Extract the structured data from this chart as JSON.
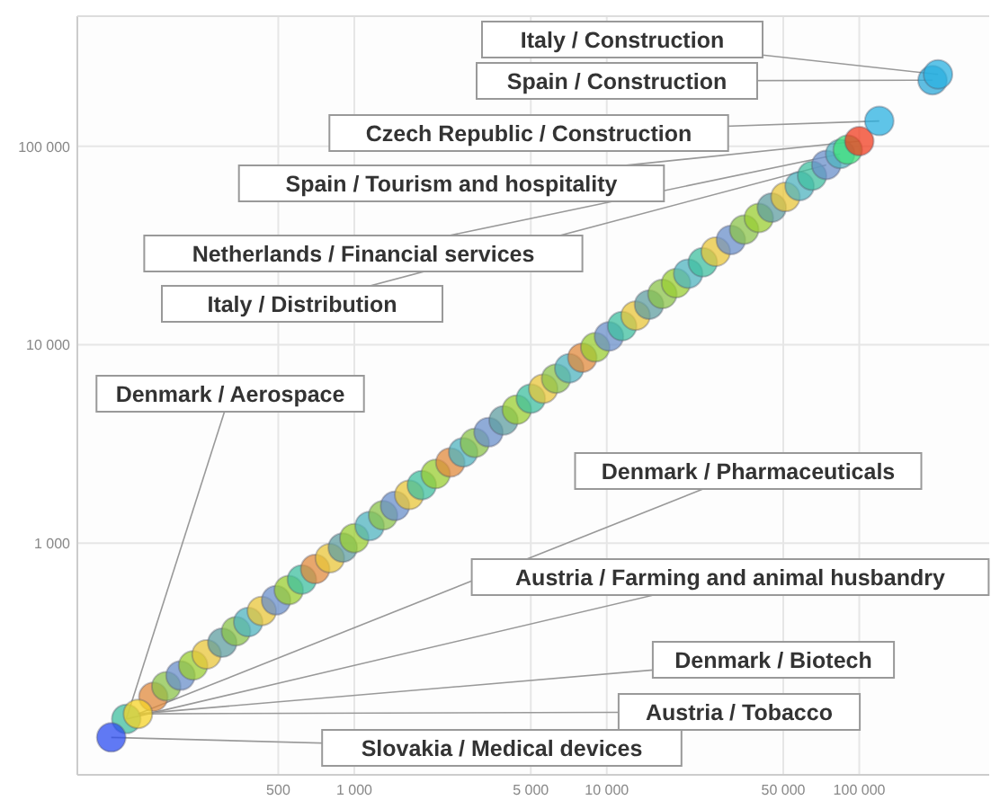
{
  "chart_data": {
    "type": "scatter",
    "log": "xy",
    "grid": true,
    "marker": "circle",
    "xlim": [
      80,
      327000
    ],
    "ylim": [
      68,
      452000
    ],
    "xticks": [
      {
        "value": 500,
        "label": "500"
      },
      {
        "value": 1000,
        "label": "1 000"
      },
      {
        "value": 5000,
        "label": "5 000"
      },
      {
        "value": 10000,
        "label": "10 000"
      },
      {
        "value": 50000,
        "label": "50 000"
      },
      {
        "value": 100000,
        "label": "100 000"
      }
    ],
    "yticks": [
      {
        "value": 1000,
        "label": "1 000"
      },
      {
        "value": 10000,
        "label": "10 000"
      },
      {
        "value": 100000,
        "label": "100 000"
      }
    ],
    "series": [
      {
        "x": [
          125,
          160,
          180,
          205,
          230,
          260,
          300,
          340,
          380,
          430,
          490,
          550,
          620,
          700,
          800,
          900,
          1000,
          1150,
          1300,
          1450,
          1650,
          1850,
          2100,
          2400,
          2700,
          3000,
          3400,
          3900,
          4400,
          5000,
          5600,
          6300,
          7100,
          8000,
          9000,
          10200,
          11500,
          13000,
          14700,
          16600,
          18800,
          21000,
          24000,
          27000,
          31000,
          35000,
          40000,
          45000,
          51000,
          58000,
          65000,
          74000,
          84000,
          90000,
          100000,
          120000,
          195000,
          205000,
          139,
          109
        ],
        "values": [
          130,
          168,
          190,
          215,
          242,
          275,
          315,
          360,
          400,
          455,
          515,
          580,
          655,
          740,
          840,
          950,
          1060,
          1220,
          1380,
          1540,
          1750,
          1960,
          2230,
          2550,
          2870,
          3200,
          3620,
          4150,
          4700,
          5350,
          6000,
          6750,
          7600,
          8600,
          9700,
          11000,
          12400,
          14000,
          15900,
          18000,
          20400,
          22800,
          26000,
          29400,
          33700,
          38000,
          43500,
          49000,
          55500,
          63000,
          71000,
          80500,
          91500,
          96000,
          106000,
          134000,
          215000,
          230000,
          138,
          105
        ],
        "colors": [
          "#3fbf9f",
          "#e08a3c",
          "#8bc34a",
          "#6a8fc9",
          "#9acd32",
          "#e8c53a",
          "#5f9ea0",
          "#8bc34a",
          "#4fb3bf",
          "#e8c53a",
          "#6a8fc9",
          "#9acd32",
          "#3fbf9f",
          "#e08a3c",
          "#e8c53a",
          "#5f9ea0",
          "#9acd32",
          "#4fb3bf",
          "#8bc34a",
          "#6a8fc9",
          "#e8c53a",
          "#3fbf9f",
          "#9acd32",
          "#e08a3c",
          "#4fb3bf",
          "#8bc34a",
          "#6a8fc9",
          "#5f9ea0",
          "#9acd32",
          "#3fbf9f",
          "#e8c53a",
          "#8bc34a",
          "#4fb3bf",
          "#e08a3c",
          "#9acd32",
          "#6a8fc9",
          "#3fbf9f",
          "#e8c53a",
          "#5f9ea0",
          "#8bc34a",
          "#9acd32",
          "#4fb3bf",
          "#3fbf9f",
          "#e8c53a",
          "#6a8fc9",
          "#8bc34a",
          "#9acd32",
          "#5f9ea0",
          "#e8c53a",
          "#4fb3bf",
          "#3fbf9f",
          "#6a8fc9",
          "#4fb3bf",
          "#3ee27a",
          "#f03c1f",
          "#29b0e0",
          "#29a8d8",
          "#29b0e0",
          "#f5d327",
          "#2b4cf0"
        ]
      }
    ],
    "annotations": [
      {
        "text": "Italy / Construction",
        "x": 205000,
        "y": 230000
      },
      {
        "text": "Spain / Construction",
        "x": 195000,
        "y": 215000
      },
      {
        "text": "Czech Republic / Construction",
        "x": 120000,
        "y": 134000
      },
      {
        "text": "Spain / Tourism and hospitality",
        "x": 100000,
        "y": 106000
      },
      {
        "text": "Netherlands / Financial services",
        "x": 84000,
        "y": 91500
      },
      {
        "text": "Italy / Distribution",
        "x": 74000,
        "y": 80500
      },
      {
        "text": "Denmark / Aerospace",
        "x": 125,
        "y": 130
      },
      {
        "text": "Denmark / Pharmaceuticals",
        "x": 139,
        "y": 138
      },
      {
        "text": "Austria / Farming and animal husbandry",
        "x": 125,
        "y": 130
      },
      {
        "text": "Denmark / Biotech",
        "x": 139,
        "y": 138
      },
      {
        "text": "Austria / Tobacco",
        "x": 139,
        "y": 138
      },
      {
        "text": "Slovakia / Medical devices",
        "x": 109,
        "y": 105
      }
    ]
  }
}
